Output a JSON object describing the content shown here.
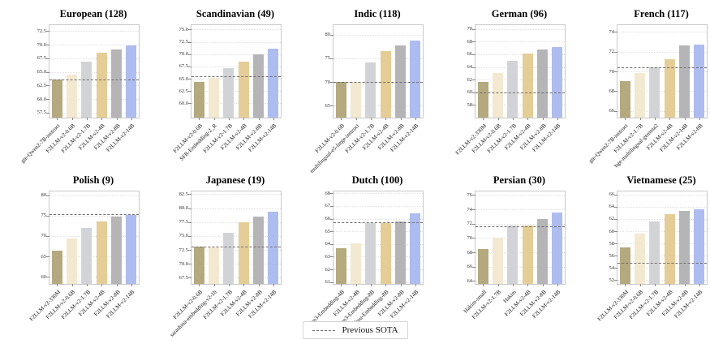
{
  "figure": {
    "legend": {
      "label": "Previous SOTA",
      "position": "bottom-center"
    },
    "bar_colors": [
      "#b5a97f",
      "#f2e9d0",
      "#d2d3d6",
      "#e5cd97",
      "#b5b5b8",
      "#aebdf0"
    ],
    "sota_line_color": "#6f6f6f",
    "grid_color": "#e0e0e0"
  },
  "chart_data": [
    {
      "type": "bar",
      "title": "European (128)",
      "categories": [
        "gte-Qwen2-7B-instruct",
        "F2LLM-v2-0.6B",
        "F2LLM-v2-1.7B",
        "F2LLM-v2-4B",
        "F2LLM-v2-8B",
        "F2LLM-v2-14B"
      ],
      "values": [
        63.6,
        64.5,
        66.9,
        68.6,
        69.2,
        69.9
      ],
      "yticks": [
        57.5,
        60.0,
        62.5,
        65.0,
        67.5,
        70.0,
        72.5
      ],
      "ytick_labels": [
        "57.5",
        "60.0",
        "62.5",
        "65.0",
        "67.5",
        "70.0",
        "72.5"
      ],
      "ylim": [
        56.6,
        73.6
      ],
      "previous_sota": 63.6,
      "grid": true
    },
    {
      "type": "bar",
      "title": "Scandinavian (49)",
      "categories": [
        "F2LLM-v2-0.6B",
        "SFR-Embedding-2_R",
        "F2LLM-v2-1.7B",
        "F2LLM-v2-4B",
        "F2LLM-v2-8B",
        "F2LLM-v2-14B"
      ],
      "values": [
        64.3,
        65.2,
        67.2,
        68.5,
        70.0,
        71.2
      ],
      "yticks": [
        60.0,
        62.5,
        65.0,
        67.5,
        70.0,
        72.5,
        75.0
      ],
      "ytick_labels": [
        "60.0",
        "62.5",
        "65.0",
        "67.5",
        "70.0",
        "72.5",
        "75.0"
      ],
      "ylim": [
        57.1,
        75.9
      ],
      "previous_sota": 65.5,
      "grid": true
    },
    {
      "type": "bar",
      "title": "Indic (118)",
      "categories": [
        "F2LLM-v2-0.6B",
        "multilingual-e5-large-instruct",
        "F2LLM-v2-1.7B",
        "F2LLM-v2-4B",
        "F2LLM-v2-8B",
        "F2LLM-v2-14B"
      ],
      "values": [
        70.0,
        70.0,
        74.2,
        76.5,
        77.8,
        78.8
      ],
      "yticks": [
        65,
        70,
        75,
        80
      ],
      "ytick_labels": [
        "65",
        "70",
        "75",
        "80"
      ],
      "ylim": [
        62.5,
        82.0
      ],
      "previous_sota": 70.0,
      "grid": true
    },
    {
      "type": "bar",
      "title": "German (96)",
      "categories": [
        "F2LLM-v2-330M",
        "F2LLM-v2-0.6B",
        "F2LLM-v2-1.7B",
        "F2LLM-v2-4B",
        "F2LLM-v2-8B",
        "F2LLM-v2-14B"
      ],
      "values": [
        61.6,
        63.1,
        65.0,
        66.1,
        66.8,
        67.1
      ],
      "yticks": [
        58,
        60,
        62,
        64,
        66,
        68,
        70
      ],
      "ytick_labels": [
        "58",
        "60",
        "62",
        "64",
        "66",
        "68",
        "70"
      ],
      "ylim": [
        56.0,
        70.6
      ],
      "previous_sota": 60.0,
      "grid": true
    },
    {
      "type": "bar",
      "title": "French (117)",
      "categories": [
        "gte-Qwen2-7B-instruct",
        "F2LLM-v2-1.7B",
        "bge-multilingual-gemma2",
        "F2LLM-v2-4B",
        "F2LLM-v2-14B",
        "F2LLM-v2-8B"
      ],
      "values": [
        69.0,
        69.8,
        70.4,
        71.2,
        72.6,
        72.7
      ],
      "yticks": [
        66,
        68,
        70,
        72,
        74
      ],
      "ytick_labels": [
        "66",
        "68",
        "70",
        "72",
        "74"
      ],
      "ylim": [
        65.3,
        74.7
      ],
      "previous_sota": 70.4,
      "grid": true
    },
    {
      "type": "bar",
      "title": "Polish (9)",
      "categories": [
        "F2LLM-v2-330M",
        "F2LLM-v2-0.6B",
        "F2LLM-v2-1.7B",
        "F2LLM-v2-4B",
        "F2LLM-v2-8B",
        "F2LLM-v2-14B"
      ],
      "values": [
        66.5,
        69.5,
        72.0,
        73.5,
        74.7,
        75.2
      ],
      "yticks": [
        60,
        65,
        70,
        75,
        80
      ],
      "ytick_labels": [
        "60",
        "65",
        "70",
        "75",
        "80"
      ],
      "ylim": [
        58.3,
        80.9
      ],
      "previous_sota": 75.3,
      "grid": true
    },
    {
      "type": "bar",
      "title": "Japanese (19)",
      "categories": [
        "F2LLM-v2-0.6B",
        "sarashina-embedding-v2-1b",
        "F2LLM-v2-1.7B",
        "F2LLM-v2-4B",
        "F2LLM-v2-8B",
        "F2LLM-v2-14B"
      ],
      "values": [
        73.1,
        73.0,
        75.6,
        77.4,
        78.5,
        79.4
      ],
      "yticks": [
        67.5,
        70.0,
        72.5,
        75.0,
        77.5,
        80.0,
        82.5
      ],
      "ytick_labels": [
        "67.5",
        "70.0",
        "72.5",
        "75.0",
        "77.5",
        "80.0",
        "82.5"
      ],
      "ylim": [
        66.4,
        83.0
      ],
      "previous_sota": 73.1,
      "grid": true
    },
    {
      "type": "bar",
      "title": "Dutch (100)",
      "categories": [
        "Qwen3-Embedding-4B",
        "F2LLM-v2-4B",
        "Qwen3-Embedding-8B",
        "Qzhou-Embedding-8B",
        "F2LLM-v2-8B",
        "F2LLM-v2-14B"
      ],
      "values": [
        63.65,
        64.05,
        65.65,
        65.65,
        65.8,
        66.4
      ],
      "yticks": [
        61,
        62,
        63,
        64,
        65,
        66,
        67,
        68
      ],
      "ytick_labels": [
        "61",
        "62",
        "63",
        "64",
        "65",
        "66",
        "67",
        "68"
      ],
      "ylim": [
        60.85,
        68.15
      ],
      "previous_sota": 65.7,
      "grid": true
    },
    {
      "type": "bar",
      "title": "Persian (30)",
      "categories": [
        "Hakim-small",
        "F2LLM-v2-1.7B",
        "Hakim",
        "F2LLM-v2-4B",
        "F2LLM-v2-8B",
        "F2LLM-v2-14B"
      ],
      "values": [
        68.5,
        70.0,
        71.7,
        71.7,
        72.7,
        73.6
      ],
      "yticks": [
        64,
        66,
        68,
        70,
        72,
        74,
        76
      ],
      "ytick_labels": [
        "64",
        "66",
        "68",
        "70",
        "72",
        "74",
        "76"
      ],
      "ylim": [
        63.6,
        76.5
      ],
      "previous_sota": 71.6,
      "grid": true
    },
    {
      "type": "bar",
      "title": "Vietnamese (25)",
      "categories": [
        "F2LLM-v2-330M",
        "F2LLM-v2-0.6B",
        "F2LLM-v2-1.7B",
        "F2LLM-v2-4B",
        "F2LLM-v2-8B",
        "F2LLM-v2-14B"
      ],
      "values": [
        57.4,
        59.6,
        61.6,
        62.8,
        63.3,
        63.6
      ],
      "yticks": [
        52,
        54,
        56,
        58,
        60,
        62,
        64,
        66
      ],
      "ytick_labels": [
        "52",
        "54",
        "56",
        "58",
        "60",
        "62",
        "64",
        "66"
      ],
      "ylim": [
        51.4,
        66.5
      ],
      "previous_sota": 54.8,
      "grid": true
    }
  ]
}
